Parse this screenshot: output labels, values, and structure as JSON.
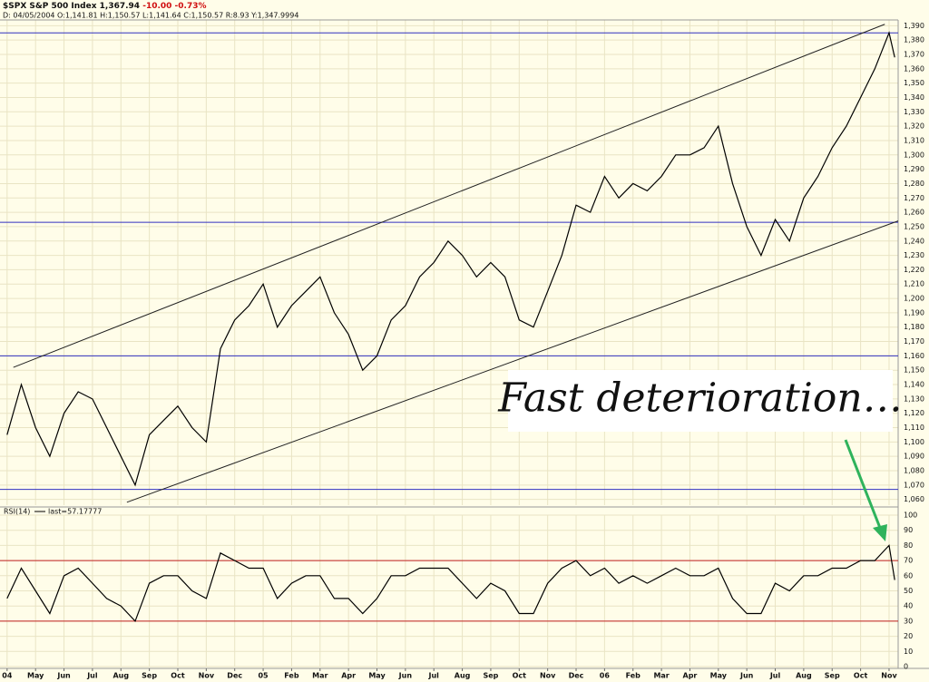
{
  "header": {
    "symbol": "$SPX S&P 500 Index",
    "last": "1,367.94",
    "change": "-10.00",
    "pct_change": "-0.73%",
    "bar_info": "D: 04/05/2004 O:1,141.81 H:1,150.57 L:1,141.64 C:1,150.57 R:8.93 Y:1,347.9994"
  },
  "chart_data": [
    {
      "type": "line",
      "color": "#000000",
      "annotation": "Fast deterioration…",
      "xlim": [
        -0.25,
        31.32
      ],
      "ylim": [
        1056,
        1394
      ],
      "grid": true,
      "x": [
        0,
        0.5,
        1,
        1.5,
        2,
        2.5,
        3,
        3.5,
        4,
        4.5,
        5,
        5.5,
        6,
        6.5,
        7,
        7.5,
        8,
        8.5,
        9,
        9.5,
        10,
        10.5,
        11,
        11.5,
        12,
        12.5,
        13,
        13.5,
        14,
        14.5,
        15,
        15.5,
        16,
        16.5,
        17,
        17.5,
        18,
        18.5,
        19,
        19.5,
        20,
        20.5,
        21,
        21.5,
        22,
        22.5,
        23,
        23.5,
        24,
        24.5,
        25,
        25.5,
        26,
        26.5,
        27,
        27.5,
        28,
        28.5,
        29,
        29.5,
        30,
        30.5,
        31,
        31.2
      ],
      "values": [
        1105,
        1140,
        1110,
        1090,
        1120,
        1135,
        1130,
        1110,
        1090,
        1070,
        1105,
        1115,
        1125,
        1110,
        1100,
        1165,
        1185,
        1195,
        1210,
        1180,
        1195,
        1205,
        1215,
        1190,
        1175,
        1150,
        1160,
        1185,
        1195,
        1215,
        1225,
        1240,
        1230,
        1215,
        1225,
        1215,
        1185,
        1180,
        1205,
        1230,
        1265,
        1260,
        1285,
        1270,
        1280,
        1275,
        1285,
        1300,
        1300,
        1305,
        1320,
        1280,
        1250,
        1230,
        1255,
        1240,
        1270,
        1285,
        1305,
        1320,
        1340,
        1360,
        1385,
        1368
      ],
      "hlines": {
        "color": "#3030c0",
        "values": [
          1385,
          1253,
          1160,
          1067
        ]
      },
      "trendlines": {
        "color": "#222222",
        "lines": [
          {
            "x": [
              0.22,
              30.85
            ],
            "y": [
              1152,
              1391
            ]
          },
          {
            "x": [
              4.21,
              31.32
            ],
            "y": [
              1058,
              1254
            ]
          }
        ]
      },
      "yticks": [
        {
          "value": 1060,
          "label": "1,060"
        },
        {
          "value": 1070,
          "label": "1,070"
        },
        {
          "value": 1080,
          "label": "1,080"
        },
        {
          "value": 1090,
          "label": "1,090"
        },
        {
          "value": 1100,
          "label": "1,100"
        },
        {
          "value": 1110,
          "label": "1,110"
        },
        {
          "value": 1120,
          "label": "1,120"
        },
        {
          "value": 1130,
          "label": "1,130"
        },
        {
          "value": 1140,
          "label": "1,140"
        },
        {
          "value": 1150,
          "label": "1,150"
        },
        {
          "value": 1160,
          "label": "1,160"
        },
        {
          "value": 1170,
          "label": "1,170"
        },
        {
          "value": 1180,
          "label": "1,180"
        },
        {
          "value": 1190,
          "label": "1,190"
        },
        {
          "value": 1200,
          "label": "1,200"
        },
        {
          "value": 1210,
          "label": "1,210"
        },
        {
          "value": 1220,
          "label": "1,220"
        },
        {
          "value": 1230,
          "label": "1,230"
        },
        {
          "value": 1240,
          "label": "1,240"
        },
        {
          "value": 1250,
          "label": "1,250"
        },
        {
          "value": 1260,
          "label": "1,260"
        },
        {
          "value": 1270,
          "label": "1,270"
        },
        {
          "value": 1280,
          "label": "1,280"
        },
        {
          "value": 1290,
          "label": "1,290"
        },
        {
          "value": 1300,
          "label": "1,300"
        },
        {
          "value": 1310,
          "label": "1,310"
        },
        {
          "value": 1320,
          "label": "1,320"
        },
        {
          "value": 1330,
          "label": "1,330"
        },
        {
          "value": 1340,
          "label": "1,340"
        },
        {
          "value": 1350,
          "label": "1,350"
        },
        {
          "value": 1360,
          "label": "1,360"
        },
        {
          "value": 1370,
          "label": "1,370"
        },
        {
          "value": 1380,
          "label": "1,380"
        },
        {
          "value": 1390,
          "label": "1,390"
        }
      ]
    },
    {
      "type": "line",
      "color": "#000000",
      "label": "RSI(14)",
      "last_label": "last=57.17777",
      "xlim": [
        -0.25,
        31.32
      ],
      "ylim": [
        0,
        100
      ],
      "grid": true,
      "x": [
        0,
        0.5,
        1,
        1.5,
        2,
        2.5,
        3,
        3.5,
        4,
        4.5,
        5,
        5.5,
        6,
        6.5,
        7,
        7.5,
        8,
        8.5,
        9,
        9.5,
        10,
        10.5,
        11,
        11.5,
        12,
        12.5,
        13,
        13.5,
        14,
        14.5,
        15,
        15.5,
        16,
        16.5,
        17,
        17.5,
        18,
        18.5,
        19,
        19.5,
        20,
        20.5,
        21,
        21.5,
        22,
        22.5,
        23,
        23.5,
        24,
        24.5,
        25,
        25.5,
        26,
        26.5,
        27,
        27.5,
        28,
        28.5,
        29,
        29.5,
        30,
        30.5,
        31,
        31.2
      ],
      "values": [
        45,
        65,
        50,
        35,
        60,
        65,
        55,
        45,
        40,
        30,
        55,
        60,
        60,
        50,
        45,
        75,
        70,
        65,
        65,
        45,
        55,
        60,
        60,
        45,
        45,
        35,
        45,
        60,
        60,
        65,
        65,
        65,
        55,
        45,
        55,
        50,
        35,
        35,
        55,
        65,
        70,
        60,
        65,
        55,
        60,
        55,
        60,
        65,
        60,
        60,
        65,
        45,
        35,
        35,
        55,
        50,
        60,
        60,
        65,
        65,
        70,
        70,
        80,
        57.17777
      ],
      "hlines": {
        "color": "#c02020",
        "values": [
          70,
          30
        ]
      },
      "yticks": [
        0,
        10,
        20,
        30,
        40,
        50,
        60,
        70,
        80,
        90,
        100
      ],
      "xticks": [
        {
          "value": 0,
          "label": "04"
        },
        {
          "value": 1,
          "label": "May"
        },
        {
          "value": 2,
          "label": "Jun"
        },
        {
          "value": 3,
          "label": "Jul"
        },
        {
          "value": 4,
          "label": "Aug"
        },
        {
          "value": 5,
          "label": "Sep"
        },
        {
          "value": 6,
          "label": "Oct"
        },
        {
          "value": 7,
          "label": "Nov"
        },
        {
          "value": 8,
          "label": "Dec"
        },
        {
          "value": 9,
          "label": "05"
        },
        {
          "value": 10,
          "label": "Feb"
        },
        {
          "value": 11,
          "label": "Mar"
        },
        {
          "value": 12,
          "label": "Apr"
        },
        {
          "value": 13,
          "label": "May"
        },
        {
          "value": 14,
          "label": "Jun"
        },
        {
          "value": 15,
          "label": "Jul"
        },
        {
          "value": 16,
          "label": "Aug"
        },
        {
          "value": 17,
          "label": "Sep"
        },
        {
          "value": 18,
          "label": "Oct"
        },
        {
          "value": 19,
          "label": "Nov"
        },
        {
          "value": 20,
          "label": "Dec"
        },
        {
          "value": 21,
          "label": "06"
        },
        {
          "value": 22,
          "label": "Feb"
        },
        {
          "value": 23,
          "label": "Mar"
        },
        {
          "value": 24,
          "label": "Apr"
        },
        {
          "value": 25,
          "label": "May"
        },
        {
          "value": 26,
          "label": "Jun"
        },
        {
          "value": 27,
          "label": "Jul"
        },
        {
          "value": 28,
          "label": "Aug"
        },
        {
          "value": 29,
          "label": "Sep"
        },
        {
          "value": 30,
          "label": "Oct"
        },
        {
          "value": 31,
          "label": "Nov"
        }
      ]
    }
  ]
}
